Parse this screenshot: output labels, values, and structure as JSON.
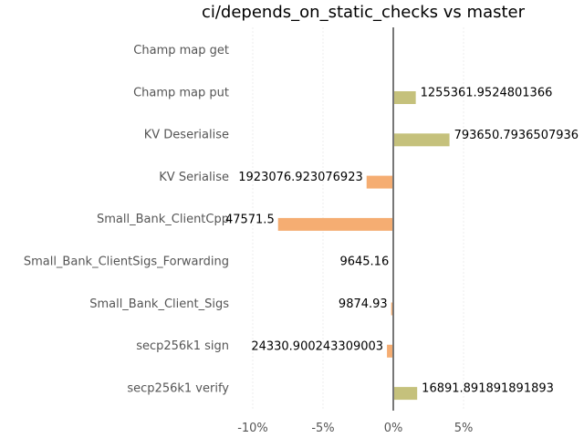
{
  "chart_data": {
    "type": "bar",
    "orientation": "horizontal",
    "title": "ci/depends_on_static_checks vs master",
    "categories": [
      "Champ map get",
      "Champ map put",
      "KV Deserialise",
      "KV Serialise",
      "Small_Bank_ClientCpp",
      "Small_Bank_ClientSigs_Forwarding",
      "Small_Bank_Client_Sigs",
      "secp256k1 sign",
      "secp256k1 verify"
    ],
    "values": [
      0.0,
      1.6,
      4.0,
      -1.9,
      -8.2,
      -0.05,
      -0.15,
      -0.45,
      1.7
    ],
    "data_labels": [
      "",
      "1255361.9524801366",
      "793650.7936507936",
      "1923076.923076923",
      "47571.5",
      "9645.16",
      "9874.93",
      "24330.900243309003",
      "16891.891891891893"
    ],
    "xlim": [
      -11,
      11
    ],
    "x_ticks": [
      -10,
      -5,
      0,
      5
    ],
    "x_tick_labels": [
      "-10%",
      "-5%",
      "0%",
      "5%"
    ],
    "grid": true,
    "colors": {
      "positive": "#c5c17c",
      "negative": "#f5ad72",
      "zero_line": "#777777",
      "grid": "#eeeeee"
    }
  }
}
